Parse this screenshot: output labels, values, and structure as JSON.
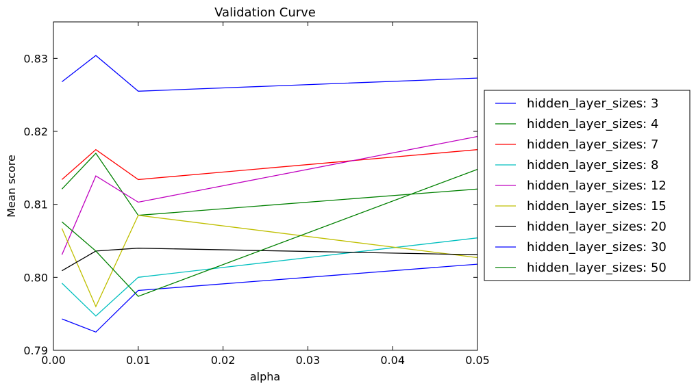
{
  "chart_data": {
    "type": "line",
    "title": "Validation Curve",
    "xlabel": "alpha",
    "ylabel": "Mean score",
    "xlim": [
      0.0,
      0.05
    ],
    "ylim": [
      0.79,
      0.835
    ],
    "xticks": [
      0.0,
      0.01,
      0.02,
      0.03,
      0.04,
      0.05
    ],
    "xtick_labels": [
      "0.00",
      "0.01",
      "0.02",
      "0.03",
      "0.04",
      "0.05"
    ],
    "yticks": [
      0.79,
      0.8,
      0.81,
      0.82,
      0.83
    ],
    "ytick_labels": [
      "0.79",
      "0.80",
      "0.81",
      "0.82",
      "0.83"
    ],
    "grid": false,
    "legend_position": "right, outside plot",
    "x": [
      0.001,
      0.005,
      0.01,
      0.05
    ],
    "series": [
      {
        "name": "hidden_layer_sizes: 3",
        "color": "#0000ff",
        "values": [
          0.8268,
          0.8304,
          0.8255,
          0.8273
        ]
      },
      {
        "name": "hidden_layer_sizes: 4",
        "color": "#008000",
        "values": [
          0.8121,
          0.817,
          0.8085,
          0.8121
        ]
      },
      {
        "name": "hidden_layer_sizes: 7",
        "color": "#ff0000",
        "values": [
          0.8134,
          0.8175,
          0.8134,
          0.8175
        ]
      },
      {
        "name": "hidden_layer_sizes: 8",
        "color": "#00bfbf",
        "values": [
          0.7992,
          0.7947,
          0.8,
          0.8054
        ]
      },
      {
        "name": "hidden_layer_sizes: 12",
        "color": "#bf00bf",
        "values": [
          0.8031,
          0.8139,
          0.8103,
          0.8193
        ]
      },
      {
        "name": "hidden_layer_sizes: 15",
        "color": "#bfbf00",
        "values": [
          0.8067,
          0.796,
          0.8085,
          0.8027
        ]
      },
      {
        "name": "hidden_layer_sizes: 20",
        "color": "#000000",
        "values": [
          0.8009,
          0.8036,
          0.804,
          0.8031
        ]
      },
      {
        "name": "hidden_layer_sizes: 30",
        "color": "#0000ff",
        "values": [
          0.7943,
          0.7925,
          0.7982,
          0.8018
        ]
      },
      {
        "name": "hidden_layer_sizes: 50",
        "color": "#008000",
        "values": [
          0.8076,
          0.8036,
          0.7974,
          0.8148
        ]
      }
    ]
  }
}
